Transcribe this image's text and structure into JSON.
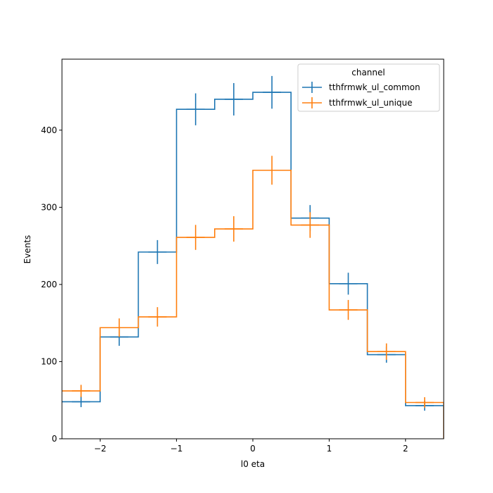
{
  "chart_data": {
    "type": "histogram-step",
    "xlabel": "l0 eta",
    "ylabel": "Events",
    "xlim": [
      -2.5,
      2.5
    ],
    "ylim": [
      0,
      492
    ],
    "x_ticks": [
      -2,
      -1,
      0,
      1,
      2
    ],
    "x_tick_labels": [
      "−2",
      "−1",
      "0",
      "1",
      "2"
    ],
    "y_ticks": [
      0,
      100,
      200,
      300,
      400
    ],
    "y_tick_labels": [
      "0",
      "100",
      "200",
      "300",
      "400"
    ],
    "bin_edges": [
      -2.5,
      -2.0,
      -1.5,
      -1.0,
      -0.5,
      0.0,
      0.5,
      1.0,
      1.5,
      2.0,
      2.5
    ],
    "legend": {
      "title": "channel",
      "position": "upper-right"
    },
    "series": [
      {
        "name": "tthfrmwk_ul_common",
        "color": "#1f77b4",
        "values": [
          48,
          132,
          242,
          427,
          440,
          449,
          286,
          201,
          109,
          43
        ],
        "errors": [
          7,
          11.5,
          15.5,
          20.7,
          21,
          21.2,
          16.9,
          14.2,
          10.4,
          6.6
        ]
      },
      {
        "name": "tthfrmwk_ul_unique",
        "color": "#ff7f0e",
        "values": [
          62,
          144,
          158,
          261,
          272,
          348,
          277,
          167,
          113,
          47
        ],
        "errors": [
          7.9,
          12,
          12.6,
          16.2,
          16.5,
          18.7,
          16.6,
          12.9,
          10.6,
          6.9
        ]
      }
    ]
  }
}
